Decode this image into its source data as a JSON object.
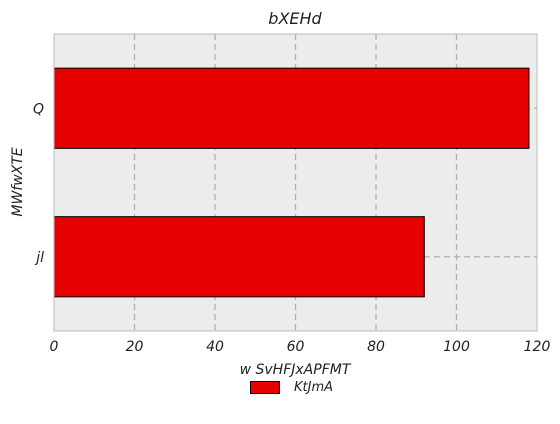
{
  "chart_data": {
    "type": "bar",
    "orientation": "horizontal",
    "title": "bXEHd",
    "xlabel": "w SvHFJxAPFMT",
    "ylabel": "MWfwXTE",
    "categories": [
      "Q",
      "jl"
    ],
    "series": [
      {
        "name": "KtJmA",
        "values": [
          118,
          92
        ],
        "color": "#e60000"
      }
    ],
    "xlim": [
      0,
      120
    ],
    "xticks": [
      0,
      20,
      40,
      60,
      80,
      100,
      120
    ],
    "grid": true,
    "legend_position": "bottom-center",
    "plot_background": "#ececec"
  }
}
